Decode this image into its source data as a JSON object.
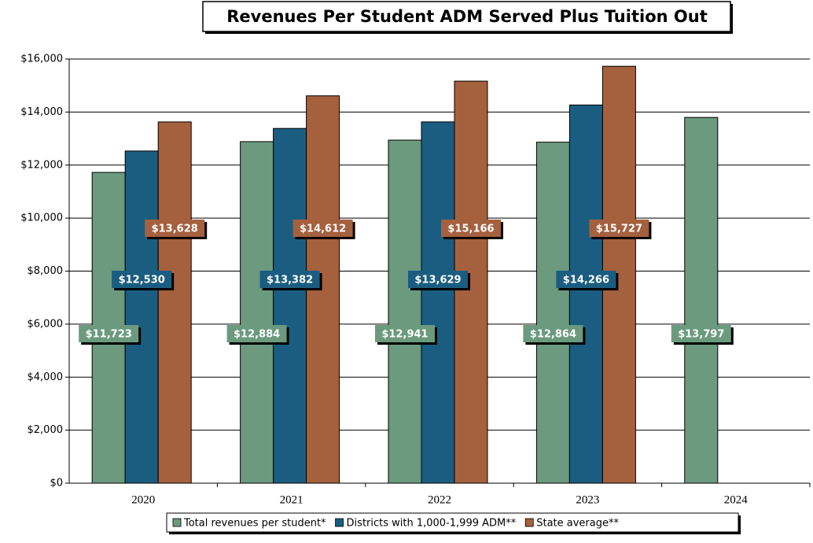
{
  "chart_data": {
    "type": "bar",
    "title": "Revenues Per Student ADM Served Plus Tuition Out",
    "categories": [
      "2020",
      "2021",
      "2022",
      "2023",
      "2024"
    ],
    "series": [
      {
        "name": "Total revenues per student*",
        "color": "#6b9a7e",
        "values": [
          11723,
          12884,
          12941,
          12864,
          13797
        ],
        "value_labels": [
          "$11,723",
          "$12,884",
          "$12,941",
          "$12,864",
          "$13,797"
        ]
      },
      {
        "name": "Districts with 1,000-1,999 ADM**",
        "color": "#1b5d80",
        "values": [
          12530,
          13382,
          13629,
          14266,
          null
        ],
        "value_labels": [
          "$12,530",
          "$13,382",
          "$13,629",
          "$14,266",
          null
        ]
      },
      {
        "name": "State average**",
        "color": "#a5603e",
        "values": [
          13628,
          14612,
          15166,
          15727,
          null
        ],
        "value_labels": [
          "$13,628",
          "$14,612",
          "$15,166",
          "$15,727",
          null
        ]
      }
    ],
    "ylim": [
      0,
      16000
    ],
    "yticks": [
      {
        "value": 0,
        "label": "$0"
      },
      {
        "value": 2000,
        "label": "$2,000"
      },
      {
        "value": 4000,
        "label": "$4,000"
      },
      {
        "value": 6000,
        "label": "$6,000"
      },
      {
        "value": 8000,
        "label": "$8,000"
      },
      {
        "value": 10000,
        "label": "$10,000"
      },
      {
        "value": 12000,
        "label": "$12,000"
      },
      {
        "value": 14000,
        "label": "$14,000"
      },
      {
        "value": 16000,
        "label": "$16,000"
      }
    ],
    "grid": true,
    "legend": "bottom"
  }
}
